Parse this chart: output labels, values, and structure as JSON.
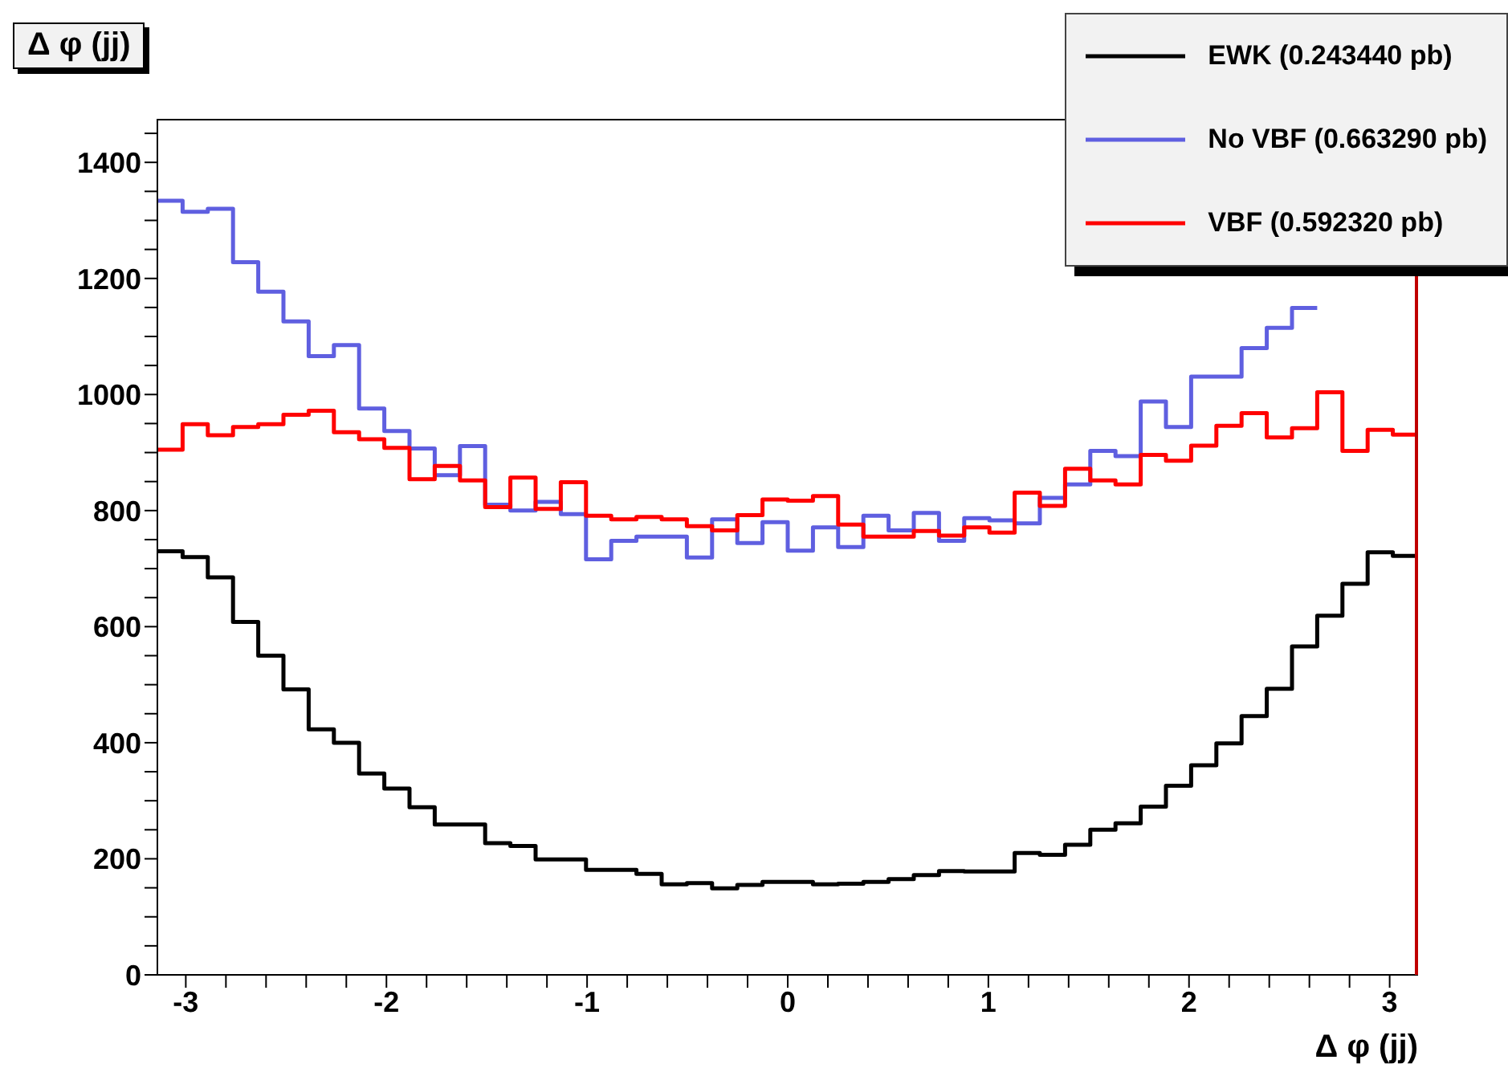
{
  "chart_data": {
    "type": "histogram",
    "title": "Δ φ (jj)",
    "xlabel": "Δ φ (jj)",
    "bins": [
      -3.1416,
      -3.0159,
      -2.8903,
      -2.7646,
      -2.6389,
      -2.5133,
      -2.3876,
      -2.2619,
      -2.1363,
      -2.0106,
      -1.885,
      -1.7593,
      -1.6336,
      -1.508,
      -1.3823,
      -1.2566,
      -1.131,
      -1.0053,
      -0.8796,
      -0.754,
      -0.6283,
      -0.5027,
      -0.377,
      -0.2513,
      -0.1257,
      0,
      0.1257,
      0.2513,
      0.377,
      0.5027,
      0.6283,
      0.754,
      0.8796,
      1.0053,
      1.131,
      1.2566,
      1.3823,
      1.508,
      1.6336,
      1.7593,
      1.885,
      2.0106,
      2.1363,
      2.2619,
      2.3876,
      2.5133,
      2.6389,
      2.7646,
      2.8903,
      3.0159,
      3.1416
    ],
    "series": [
      {
        "name": "EWK (0.243440 pb)",
        "color": "#000000",
        "values": [
          730,
          720,
          685,
          608,
          550,
          492,
          423,
          400,
          347,
          321,
          289,
          259,
          259,
          227,
          222,
          199,
          199,
          181,
          181,
          174,
          156,
          158,
          149,
          155,
          160,
          160,
          156,
          157,
          160,
          165,
          172,
          179,
          178,
          178,
          210,
          207,
          224,
          250,
          261,
          290,
          326,
          361,
          399,
          446,
          493,
          566,
          619,
          674,
          728,
          722
        ]
      },
      {
        "name": "No VBF (0.663290 pb)",
        "color": "#5f5fe0",
        "bins": [
          -3.1416,
          -3.0159,
          -2.8903,
          -2.7646,
          -2.6389,
          -2.5133,
          -2.3876,
          -2.2619,
          -2.1363,
          -2.0106,
          -1.885,
          -1.7593,
          -1.6336,
          -1.508,
          -1.3823,
          -1.2566,
          -1.131,
          -1.0053,
          -0.8796,
          -0.754,
          -0.6283,
          -0.5027,
          -0.377,
          -0.2513,
          -0.1257,
          0,
          0.1257,
          0.2513,
          0.377,
          0.5027,
          0.6283,
          0.754,
          0.8796,
          1.0053,
          1.131,
          1.2566,
          1.3823,
          1.508,
          1.6336,
          1.7593,
          1.885,
          2.0106,
          2.1363,
          2.2619,
          2.3876,
          2.5133,
          2.6389
        ],
        "values": [
          1334,
          1315,
          1320,
          1228,
          1177,
          1126,
          1066,
          1085,
          976,
          937,
          907,
          861,
          911,
          810,
          800,
          815,
          794,
          716,
          748,
          755,
          755,
          719,
          785,
          744,
          780,
          731,
          771,
          737,
          791,
          766,
          796,
          748,
          787,
          783,
          778,
          822,
          845,
          903,
          894,
          988,
          944,
          1031,
          1031,
          1080,
          1115,
          1149
        ]
      },
      {
        "name": "VBF (0.592320 pb)",
        "color": "#ff0000",
        "values": [
          905,
          949,
          930,
          944,
          949,
          965,
          972,
          935,
          923,
          908,
          854,
          877,
          852,
          806,
          857,
          803,
          849,
          791,
          785,
          789,
          785,
          773,
          766,
          792,
          819,
          817,
          825,
          776,
          755,
          755,
          765,
          757,
          771,
          762,
          831,
          808,
          872,
          852,
          845,
          896,
          886,
          912,
          946,
          968,
          926,
          942,
          1004,
          903,
          939,
          931
        ]
      }
    ],
    "xlim": [
      -3.1416,
      3.1416
    ],
    "xticks": [
      -3,
      {
        "value": -2.8,
        "label": null
      },
      {
        "value": -2.6,
        "label": null
      },
      {
        "value": -2.4,
        "label": null
      },
      {
        "value": -2.2,
        "label": null
      },
      -2,
      {
        "value": -1.8,
        "label": null
      },
      {
        "value": -1.6,
        "label": null
      },
      {
        "value": -1.4,
        "label": null
      },
      {
        "value": -1.2,
        "label": null
      },
      -1,
      {
        "value": -0.8,
        "label": null
      },
      {
        "value": -0.6,
        "label": null
      },
      {
        "value": -0.4,
        "label": null
      },
      {
        "value": -0.2,
        "label": null
      },
      0,
      {
        "value": 0.2,
        "label": null
      },
      {
        "value": 0.4,
        "label": null
      },
      {
        "value": 0.6,
        "label": null
      },
      {
        "value": 0.8,
        "label": null
      },
      1,
      {
        "value": 1.2,
        "label": null
      },
      {
        "value": 1.4,
        "label": null
      },
      {
        "value": 1.6,
        "label": null
      },
      {
        "value": 1.8,
        "label": null
      },
      2,
      {
        "value": 2.2,
        "label": null
      },
      {
        "value": 2.4,
        "label": null
      },
      {
        "value": 2.6,
        "label": null
      },
      {
        "value": 2.8,
        "label": null
      },
      3
    ],
    "ylim": [
      0,
      1475
    ],
    "yticks": [
      0,
      {
        "value": 50,
        "label": null
      },
      {
        "value": 100,
        "label": null
      },
      {
        "value": 150,
        "label": null
      },
      200,
      {
        "value": 250,
        "label": null
      },
      {
        "value": 300,
        "label": null
      },
      {
        "value": 350,
        "label": null
      },
      400,
      {
        "value": 450,
        "label": null
      },
      {
        "value": 500,
        "label": null
      },
      {
        "value": 550,
        "label": null
      },
      600,
      {
        "value": 650,
        "label": null
      },
      {
        "value": 700,
        "label": null
      },
      {
        "value": 750,
        "label": null
      },
      800,
      {
        "value": 850,
        "label": null
      },
      {
        "value": 900,
        "label": null
      },
      {
        "value": 950,
        "label": null
      },
      1000,
      {
        "value": 1050,
        "label": null
      },
      {
        "value": 1100,
        "label": null
      },
      {
        "value": 1150,
        "label": null
      },
      1200,
      {
        "value": 1250,
        "label": null
      },
      {
        "value": 1300,
        "label": null
      },
      {
        "value": 1350,
        "label": null
      },
      1400,
      {
        "value": 1450,
        "label": null
      }
    ],
    "legend": "top right",
    "grid": false,
    "line_style": "solid"
  }
}
